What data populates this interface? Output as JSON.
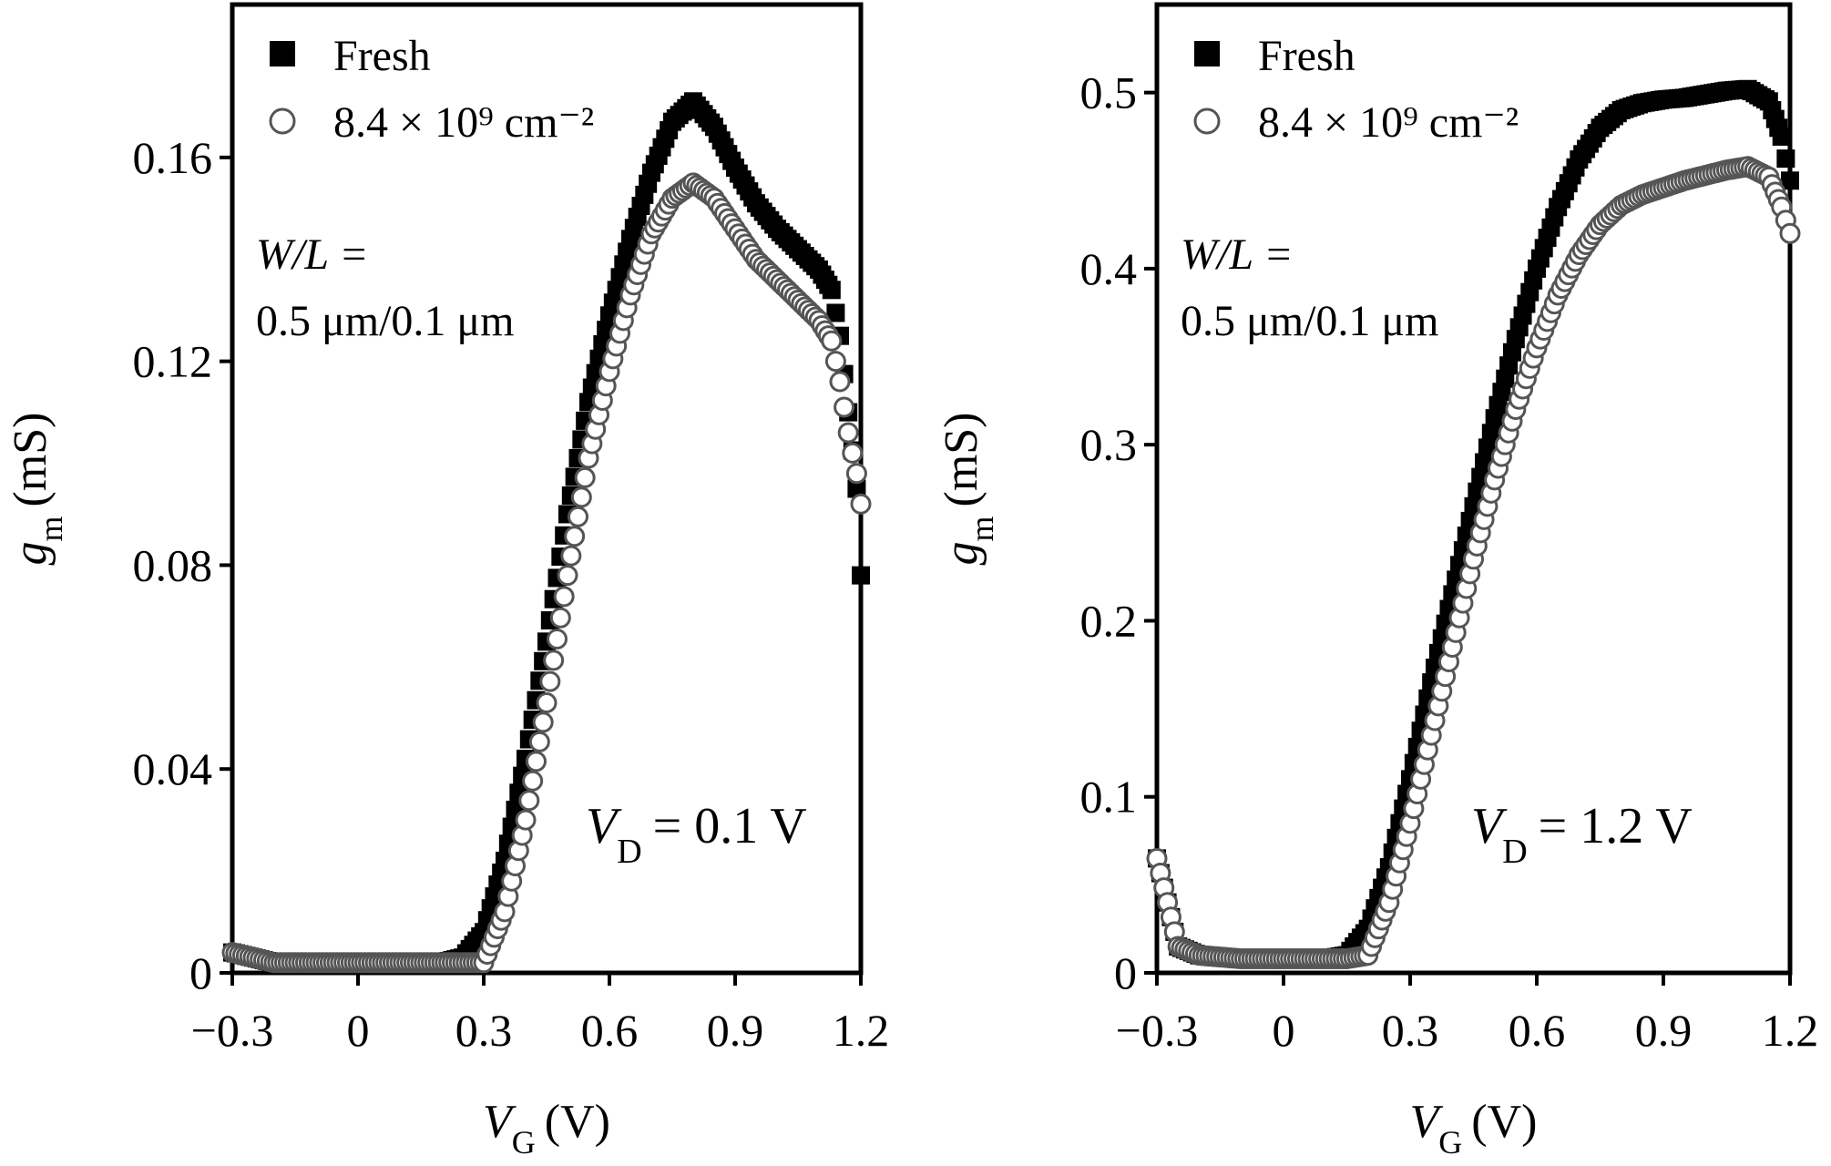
{
  "chart_data": [
    {
      "type": "scatter",
      "xlabel": {
        "symbol": "V",
        "sub": "G",
        "unit": "(V)"
      },
      "ylabel": {
        "symbol": "g",
        "sub": "m",
        "unit": "(mS)"
      },
      "xlim": [
        -0.3,
        1.2
      ],
      "ylim": [
        0,
        0.19
      ],
      "xticks": [
        -0.3,
        0,
        0.3,
        0.6,
        0.9,
        1.2
      ],
      "xtick_labels": [
        "−0.3",
        "0",
        "0.3",
        "0.6",
        "0.9",
        "1.2"
      ],
      "yticks": [
        0,
        0.04,
        0.08,
        0.12,
        0.16
      ],
      "ytick_labels": [
        "0",
        "0.04",
        "0.08",
        "0.12",
        "0.16"
      ],
      "grid": false,
      "legend_position": "top-left",
      "annotation": {
        "line1": "W/L =",
        "line2": "0.5 μm/0.1 μm"
      },
      "condition": {
        "symbol": "V",
        "sub": "D",
        "value": "= 0.1 V"
      },
      "series": [
        {
          "name": "Fresh",
          "marker": "filled-square",
          "x": [
            -0.3,
            -0.2,
            -0.1,
            0,
            0.1,
            0.2,
            0.25,
            0.3,
            0.35,
            0.4,
            0.45,
            0.5,
            0.55,
            0.6,
            0.65,
            0.7,
            0.75,
            0.8,
            0.85,
            0.9,
            0.95,
            1.0,
            1.05,
            1.1,
            1.13,
            1.15,
            1.17,
            1.19,
            1.2
          ],
          "y": [
            0.004,
            0.002,
            0.002,
            0.002,
            0.002,
            0.002,
            0.003,
            0.008,
            0.022,
            0.042,
            0.065,
            0.09,
            0.112,
            0.129,
            0.144,
            0.157,
            0.167,
            0.171,
            0.166,
            0.158,
            0.151,
            0.146,
            0.142,
            0.138,
            0.134,
            0.125,
            0.11,
            0.095,
            0.078
          ]
        },
        {
          "name": "8.4 × 10⁹ cm⁻²",
          "marker": "open-circle",
          "x": [
            -0.3,
            -0.2,
            -0.1,
            0,
            0.1,
            0.2,
            0.25,
            0.3,
            0.35,
            0.4,
            0.45,
            0.5,
            0.55,
            0.6,
            0.65,
            0.7,
            0.75,
            0.8,
            0.85,
            0.9,
            0.95,
            1.0,
            1.05,
            1.1,
            1.13,
            1.15,
            1.17,
            1.19,
            1.2
          ],
          "y": [
            0.004,
            0.002,
            0.002,
            0.002,
            0.002,
            0.002,
            0.002,
            0.002,
            0.012,
            0.03,
            0.053,
            0.078,
            0.101,
            0.118,
            0.133,
            0.145,
            0.152,
            0.155,
            0.152,
            0.146,
            0.14,
            0.136,
            0.132,
            0.128,
            0.124,
            0.116,
            0.106,
            0.098,
            0.092
          ]
        }
      ]
    },
    {
      "type": "scatter",
      "xlabel": {
        "symbol": "V",
        "sub": "G",
        "unit": "(V)"
      },
      "ylabel": {
        "symbol": "g",
        "sub": "m",
        "unit": "(mS)"
      },
      "xlim": [
        -0.3,
        1.2
      ],
      "ylim": [
        0,
        0.55
      ],
      "xticks": [
        -0.3,
        0,
        0.3,
        0.6,
        0.9,
        1.2
      ],
      "xtick_labels": [
        "−0.3",
        "0",
        "0.3",
        "0.6",
        "0.9",
        "1.2"
      ],
      "yticks": [
        0,
        0.1,
        0.2,
        0.3,
        0.4,
        0.5
      ],
      "ytick_labels": [
        "0",
        "0.1",
        "0.2",
        "0.3",
        "0.4",
        "0.5"
      ],
      "grid": false,
      "legend_position": "top-left",
      "annotation": {
        "line1": "W/L =",
        "line2": "0.5 μm/0.1 μm"
      },
      "condition": {
        "symbol": "V",
        "sub": "D",
        "value": "= 1.2 V"
      },
      "series": [
        {
          "name": "Fresh",
          "marker": "filled-square",
          "x": [
            -0.3,
            -0.25,
            -0.2,
            -0.1,
            0,
            0.1,
            0.15,
            0.2,
            0.25,
            0.3,
            0.35,
            0.4,
            0.45,
            0.5,
            0.55,
            0.6,
            0.65,
            0.7,
            0.75,
            0.8,
            0.85,
            0.9,
            0.95,
            1.0,
            1.05,
            1.1,
            1.15,
            1.18,
            1.2
          ],
          "y": [
            0.065,
            0.015,
            0.01,
            0.008,
            0.008,
            0.008,
            0.01,
            0.025,
            0.06,
            0.11,
            0.165,
            0.215,
            0.265,
            0.315,
            0.36,
            0.4,
            0.435,
            0.462,
            0.48,
            0.49,
            0.494,
            0.496,
            0.497,
            0.499,
            0.501,
            0.502,
            0.495,
            0.475,
            0.45
          ]
        },
        {
          "name": "8.4 × 10⁹ cm⁻²",
          "marker": "open-circle",
          "x": [
            -0.3,
            -0.25,
            -0.2,
            -0.1,
            0,
            0.1,
            0.15,
            0.2,
            0.25,
            0.3,
            0.35,
            0.4,
            0.45,
            0.5,
            0.55,
            0.6,
            0.65,
            0.7,
            0.75,
            0.8,
            0.85,
            0.9,
            0.95,
            1.0,
            1.05,
            1.1,
            1.15,
            1.18,
            1.2
          ],
          "y": [
            0.065,
            0.015,
            0.01,
            0.008,
            0.008,
            0.008,
            0.008,
            0.01,
            0.04,
            0.085,
            0.135,
            0.185,
            0.235,
            0.28,
            0.32,
            0.355,
            0.385,
            0.408,
            0.425,
            0.436,
            0.442,
            0.446,
            0.45,
            0.453,
            0.456,
            0.458,
            0.452,
            0.435,
            0.42
          ]
        }
      ]
    }
  ]
}
